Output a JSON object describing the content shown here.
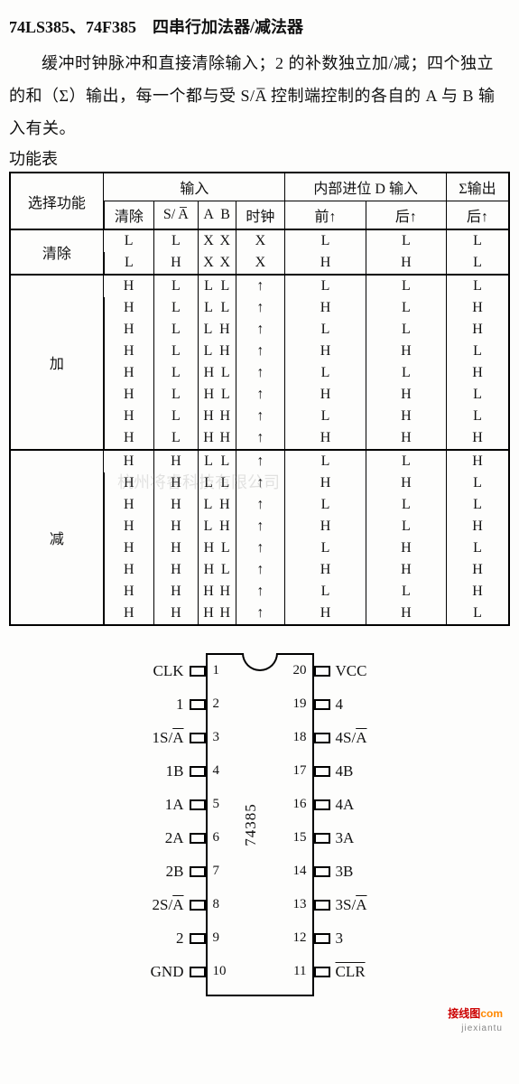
{
  "title": "74LS385、74F385　四串行加法器/减法器",
  "description": "缓冲时钟脉冲和直接清除输入；2 的补数独立加/减；四个独立的和（Σ）输出，每一个都与受 S/A̅ 控制端控制的各自的 A 与 B 输入有关。",
  "function_label": "功能表",
  "headers": {
    "select_func": "选择功能",
    "inputs": "输入",
    "d_carry": "内部进位 D 输入",
    "sigma_out": "Σ输出",
    "clear": "清除",
    "sa": "S/ A̅",
    "ab": "A B",
    "a": "A",
    "b": "B",
    "clock": "时钟",
    "before": "前↑",
    "after": "后↑",
    "after2": "后↑"
  },
  "row_labels": {
    "clear": "清除",
    "add": "加",
    "sub": "减"
  },
  "table": {
    "clear": [
      [
        "L",
        "L",
        "X",
        "X",
        "X",
        "L",
        "L",
        "L"
      ],
      [
        "L",
        "H",
        "X",
        "X",
        "X",
        "H",
        "H",
        "L"
      ]
    ],
    "add": [
      [
        "H",
        "L",
        "L",
        "L",
        "↑",
        "L",
        "L",
        "L"
      ],
      [
        "H",
        "L",
        "L",
        "L",
        "↑",
        "H",
        "L",
        "H"
      ],
      [
        "H",
        "L",
        "L",
        "H",
        "↑",
        "L",
        "L",
        "H"
      ],
      [
        "H",
        "L",
        "L",
        "H",
        "↑",
        "H",
        "H",
        "L"
      ],
      [
        "H",
        "L",
        "H",
        "L",
        "↑",
        "L",
        "L",
        "H"
      ],
      [
        "H",
        "L",
        "H",
        "L",
        "↑",
        "H",
        "H",
        "L"
      ],
      [
        "H",
        "L",
        "H",
        "H",
        "↑",
        "L",
        "H",
        "L"
      ],
      [
        "H",
        "L",
        "H",
        "H",
        "↑",
        "H",
        "H",
        "H"
      ]
    ],
    "sub": [
      [
        "H",
        "H",
        "L",
        "L",
        "↑",
        "L",
        "L",
        "H"
      ],
      [
        "H",
        "H",
        "L",
        "L",
        "↑",
        "H",
        "H",
        "L"
      ],
      [
        "H",
        "H",
        "L",
        "H",
        "↑",
        "L",
        "L",
        "L"
      ],
      [
        "H",
        "H",
        "L",
        "H",
        "↑",
        "H",
        "L",
        "H"
      ],
      [
        "H",
        "H",
        "H",
        "L",
        "↑",
        "L",
        "H",
        "L"
      ],
      [
        "H",
        "H",
        "H",
        "L",
        "↑",
        "H",
        "H",
        "H"
      ],
      [
        "H",
        "H",
        "H",
        "H",
        "↑",
        "L",
        "L",
        "H"
      ],
      [
        "H",
        "H",
        "H",
        "H",
        "↑",
        "H",
        "H",
        "L"
      ]
    ]
  },
  "chip": {
    "name": "74385",
    "left": [
      {
        "num": "1",
        "label": "CLK"
      },
      {
        "num": "2",
        "label": "1"
      },
      {
        "num": "3",
        "label_html": "1S/<span class='ov'>A</span>"
      },
      {
        "num": "4",
        "label": "1B"
      },
      {
        "num": "5",
        "label": "1A"
      },
      {
        "num": "6",
        "label": "2A"
      },
      {
        "num": "7",
        "label": "2B"
      },
      {
        "num": "8",
        "label_html": "2S/<span class='ov'>A</span>"
      },
      {
        "num": "9",
        "label": "2"
      },
      {
        "num": "10",
        "label": "GND"
      }
    ],
    "right": [
      {
        "num": "20",
        "label": "VCC"
      },
      {
        "num": "19",
        "label": "4"
      },
      {
        "num": "18",
        "label_html": "4S/<span class='ov'>A</span>"
      },
      {
        "num": "17",
        "label": "4B"
      },
      {
        "num": "16",
        "label": "4A"
      },
      {
        "num": "15",
        "label": "3A"
      },
      {
        "num": "14",
        "label": "3B"
      },
      {
        "num": "13",
        "label_html": "3S/<span class='ov'>A</span>"
      },
      {
        "num": "12",
        "label": "3"
      },
      {
        "num": "11",
        "label_html": "<span class='ov'>CLR</span>"
      }
    ]
  },
  "watermark": "杭州将睿科技有限公司",
  "footer": {
    "a": "接线图",
    "b": "com",
    "c": "jiexiantu"
  }
}
